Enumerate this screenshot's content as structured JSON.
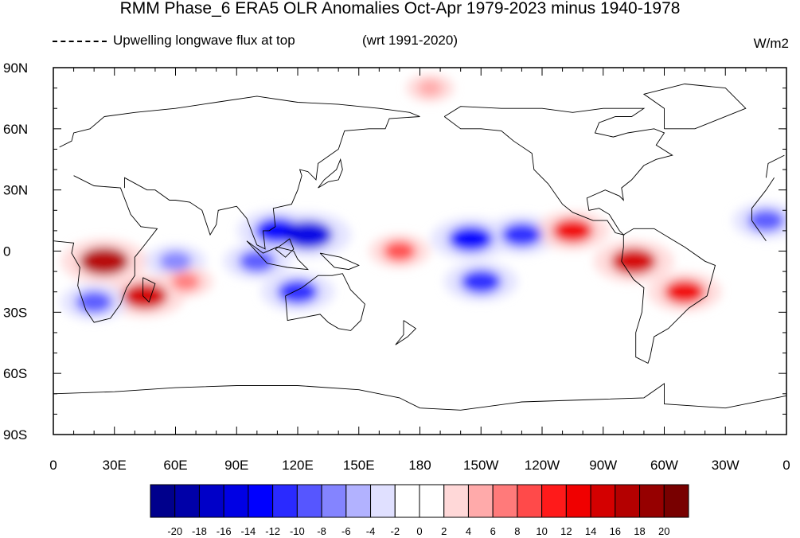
{
  "title": "RMM Phase_6 ERA5 OLR Anomalies Oct-Apr 1979-2023 minus 1940-1978",
  "subtitle_left": "Upwelling longwave flux at top",
  "subtitle_ref": "(wrt 1991-2020)",
  "units": "W/m2",
  "lat_labels": [
    "90N",
    "60N",
    "30N",
    "0",
    "30S",
    "60S",
    "90S"
  ],
  "lon_labels": [
    "0",
    "30E",
    "60E",
    "90E",
    "120E",
    "150E",
    "180",
    "150W",
    "120W",
    "90W",
    "60W",
    "30W",
    "0"
  ],
  "colorbar": {
    "labels": [
      "-20",
      "-18",
      "-16",
      "-14",
      "-12",
      "-10",
      "-8",
      "-6",
      "-4",
      "-2",
      "0",
      "2",
      "4",
      "6",
      "8",
      "10",
      "12",
      "14",
      "16",
      "18",
      "20"
    ],
    "colors": [
      "#00008c",
      "#0000a8",
      "#0000c8",
      "#0000e4",
      "#0000ff",
      "#2a2aff",
      "#5656ff",
      "#8484ff",
      "#b2b2ff",
      "#e0e0ff",
      "#ffffff",
      "#ffffff",
      "#ffd8d8",
      "#ffaaaa",
      "#ff7a7a",
      "#ff4a4a",
      "#ff1a1a",
      "#f00000",
      "#d40000",
      "#b40000",
      "#960000",
      "#780000"
    ]
  },
  "chart_data": {
    "type": "heatmap",
    "projection": "cylindrical equidistant",
    "lon_range": [
      0,
      360
    ],
    "lat_range": [
      -90,
      90
    ],
    "value_range": [
      -20,
      20
    ],
    "contour_levels": [
      -20,
      -18,
      -16,
      -14,
      -12,
      -10,
      -8,
      -6,
      -4,
      -2,
      0,
      2,
      4,
      6,
      8,
      10,
      12,
      14,
      16,
      18,
      20
    ],
    "anomalies": [
      {
        "lon": 25,
        "lat": -5,
        "value": 16
      },
      {
        "lon": 45,
        "lat": -22,
        "value": 14
      },
      {
        "lon": 20,
        "lat": -25,
        "value": -10
      },
      {
        "lon": 110,
        "lat": 10,
        "value": -14
      },
      {
        "lon": 125,
        "lat": 8,
        "value": -16
      },
      {
        "lon": 100,
        "lat": -5,
        "value": -10
      },
      {
        "lon": 120,
        "lat": -20,
        "value": -12
      },
      {
        "lon": 170,
        "lat": 0,
        "value": 8
      },
      {
        "lon": 205,
        "lat": 6,
        "value": -14
      },
      {
        "lon": 230,
        "lat": 8,
        "value": -12
      },
      {
        "lon": 210,
        "lat": -15,
        "value": -12
      },
      {
        "lon": 255,
        "lat": 10,
        "value": 12
      },
      {
        "lon": 285,
        "lat": -5,
        "value": 14
      },
      {
        "lon": 310,
        "lat": -20,
        "value": 12
      },
      {
        "lon": 350,
        "lat": 15,
        "value": -10
      },
      {
        "lon": 185,
        "lat": 80,
        "value": 4
      },
      {
        "lon": 60,
        "lat": -5,
        "value": -8
      },
      {
        "lon": 65,
        "lat": -15,
        "value": 6
      }
    ]
  }
}
